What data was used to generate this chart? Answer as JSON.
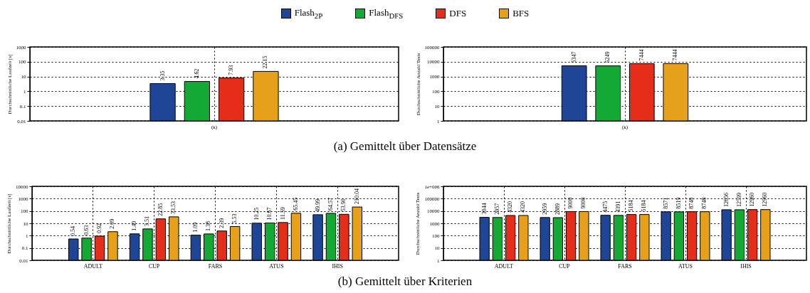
{
  "chart_data": [
    {
      "type": "bar",
      "ylabel": "Durchschnittliche Laufzeit [s]",
      "categories": [
        "(k)"
      ],
      "log": true,
      "ylim": [
        0.01,
        1000
      ],
      "yticks": [
        0.01,
        0.1,
        1,
        10,
        100,
        1000
      ],
      "grid": true,
      "legend": "top",
      "data_labels": true,
      "annotations": [
        "(a) Gemittelt über Datensätze"
      ],
      "series": [
        {
          "name": "Flash$_{2P}$",
          "color": "#1f4597",
          "values": [
            3.35
          ]
        },
        {
          "name": "Flash$_{DFS}$",
          "color": "#14a934",
          "values": [
            4.62
          ]
        },
        {
          "name": "DFS",
          "color": "#e42e1a",
          "values": [
            7.93
          ]
        },
        {
          "name": "BFS",
          "color": "#e6a01a",
          "values": [
            22.15
          ]
        }
      ]
    },
    {
      "type": "bar",
      "ylabel": "Durchschnittliche Anzahl Tests",
      "categories": [
        "(k)"
      ],
      "log": true,
      "ylim": [
        1,
        100000
      ],
      "yticks": [
        1,
        10,
        100,
        1000,
        10000,
        100000
      ],
      "grid": true,
      "data_labels": true,
      "series": [
        {
          "color": "#1f4597",
          "values": [
            5347
          ]
        },
        {
          "color": "#14a934",
          "values": [
            5249
          ]
        },
        {
          "color": "#e42e1a",
          "values": [
            7444
          ]
        },
        {
          "color": "#e6a01a",
          "values": [
            7444
          ]
        }
      ]
    },
    {
      "type": "bar",
      "ylabel": "Durchschnittliche Laufzeit [s]",
      "categories": [
        "ADULT",
        "CUP",
        "FARS",
        "ATUS",
        "IHIS"
      ],
      "log": true,
      "ylim": [
        0.01,
        10000
      ],
      "yticks": [
        0.01,
        0.1,
        1,
        10,
        100,
        1000,
        10000
      ],
      "grid": true,
      "annotations": [
        "(b) Gemittelt über Kriterien"
      ],
      "series": [
        {
          "color": "#1f4597",
          "values": [
            0.54,
            1.4,
            1.09,
            10.25,
            49.99
          ],
          "value_labels": [
            "0.54",
            "1.40",
            "1.09",
            "10.25",
            "49.99"
          ]
        },
        {
          "color": "#14a934",
          "values": [
            0.63,
            3.51,
            1.38,
            10.67,
            64.57
          ],
          "value_labels": [
            "0.63",
            "3.51",
            "1.38",
            "10.67",
            "64.57"
          ]
        },
        {
          "color": "#e42e1a",
          "values": [
            0.92,
            22.85,
            2.39,
            11.59,
            53.9
          ],
          "value_labels": [
            "0.92",
            "22.85",
            "2.39",
            "11.59",
            "53.90"
          ]
        },
        {
          "color": "#e6a01a",
          "values": [
            2.09,
            33.53,
            5.53,
            65.45,
            210.04
          ],
          "value_labels": [
            "2.09",
            "33.53",
            "5.53",
            "65.45",
            "210.04"
          ]
        }
      ]
    },
    {
      "type": "bar",
      "ylabel": "Durchschnittliche Anzahl Tests",
      "categories": [
        "ADULT",
        "CUP",
        "FARS",
        "ATUS",
        "IHIS"
      ],
      "log": true,
      "ylim": [
        1,
        1000000
      ],
      "yticks": [
        1,
        10,
        100,
        1000,
        10000,
        100000,
        {
          "value": 1000000,
          "label": "1e+006"
        }
      ],
      "grid": true,
      "data_labels": true,
      "series": [
        {
          "color": "#1f4597",
          "values": [
            3044,
            2959,
            4475,
            8571,
            12656
          ]
        },
        {
          "color": "#14a934",
          "values": [
            2957,
            2889,
            4391,
            8519,
            12599
          ]
        },
        {
          "color": "#e42e1a",
          "values": [
            4320,
            9000,
            5184,
            8748,
            12960
          ]
        },
        {
          "color": "#e6a01a",
          "values": [
            4320,
            9000,
            5184,
            8748,
            12960
          ]
        }
      ]
    }
  ]
}
